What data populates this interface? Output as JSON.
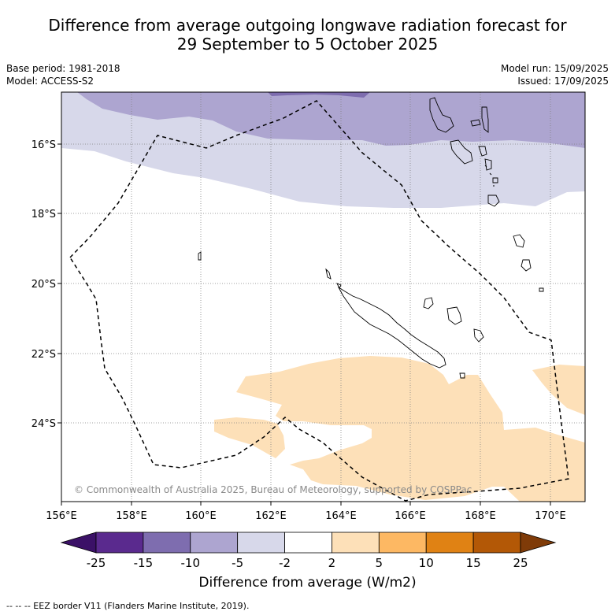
{
  "title_line1": "Difference from average outgoing longwave radiation forecast for",
  "title_line2": "29 September to 5 October 2025",
  "base_period": "Base period: 1981-2018",
  "model": "Model: ACCESS-S2",
  "model_run": "Model run: 15/09/2025",
  "issued": "Issued: 17/09/2025",
  "copyright": "© Commonwealth of Australia 2025, Bureau of Meteorology, supported by COSPPac",
  "lon_ticks": [
    "156°E",
    "158°E",
    "160°E",
    "162°E",
    "164°E",
    "166°E",
    "168°E",
    "170°E"
  ],
  "lat_ticks": [
    "16°S",
    "18°S",
    "20°S",
    "22°S",
    "24°S"
  ],
  "colorbar": {
    "ticks": [
      "-25",
      "-15",
      "-10",
      "-5",
      "-2",
      "2",
      "5",
      "10",
      "15",
      "25"
    ],
    "colors": [
      "#3b1167",
      "#5a2a8e",
      "#7e6daf",
      "#ada5d0",
      "#d7d8ea",
      "#ffffff",
      "#fde0b8",
      "#fdb863",
      "#e08214",
      "#b35806",
      "#7f3b08"
    ],
    "label": "Difference from average (W/m2)"
  },
  "footnote": "--  --  -- EEZ border V11 (Flanders Marine Institute, 2019)."
}
